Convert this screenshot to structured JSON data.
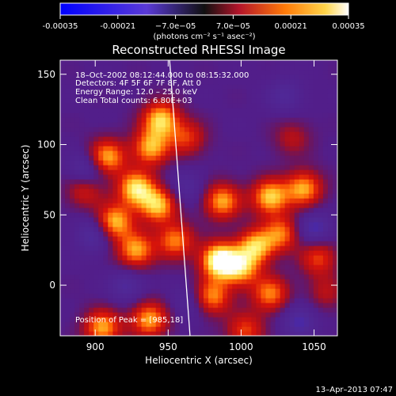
{
  "chart_data": {
    "type": "heatmap",
    "title": "Reconstructed RHESSI Image",
    "xlabel": "Heliocentric X (arcsec)",
    "ylabel": "Heliocentric Y (arcsec)",
    "xlim": [
      876,
      1066
    ],
    "ylim": [
      -36,
      160
    ],
    "x_ticks": [
      "900",
      "950",
      "1000",
      "1050"
    ],
    "y_ticks": [
      "0",
      "50",
      "100",
      "150"
    ],
    "colorbar": {
      "ticks": [
        "-0.00035",
        "-0.00021",
        "−7.0e−05",
        "7.0e−05",
        "0.00021",
        "0.00035"
      ],
      "range": [
        -0.00035,
        0.00035
      ],
      "label": "(photons cm⁻² s⁻¹ asec⁻²)"
    },
    "annotations": {
      "time": "18–Oct–2002 08:12:44.000 to 08:15:32.000",
      "detectors": "Detectors: 4F 5F 6F 7F 8F, Att 0",
      "energy": "Energy Range: 12.0 – 25.0 keV",
      "method": "Clean     Total counts: 6.80E+03",
      "peak": "Position of Peak = [985,18]"
    },
    "peak_position": [
      985,
      18
    ],
    "limb_line": {
      "x_top": 951,
      "x_bottom": 965
    },
    "bright_regions": [
      {
        "x": 908,
        "y": 91,
        "v": 0.9
      },
      {
        "x": 945,
        "y": 118,
        "v": 0.95
      },
      {
        "x": 938,
        "y": 98,
        "v": 0.85
      },
      {
        "x": 928,
        "y": 69,
        "v": 1.0
      },
      {
        "x": 943,
        "y": 57,
        "v": 0.9
      },
      {
        "x": 913,
        "y": 45,
        "v": 0.95
      },
      {
        "x": 928,
        "y": 25,
        "v": 0.85
      },
      {
        "x": 955,
        "y": 32,
        "v": 0.75
      },
      {
        "x": 987,
        "y": 60,
        "v": 0.85
      },
      {
        "x": 1020,
        "y": 63,
        "v": 0.95
      },
      {
        "x": 1043,
        "y": 69,
        "v": 0.85
      },
      {
        "x": 985,
        "y": 18,
        "v": 1.25
      },
      {
        "x": 1010,
        "y": 28,
        "v": 0.9
      },
      {
        "x": 1000,
        "y": 12,
        "v": 0.8
      },
      {
        "x": 980,
        "y": -8,
        "v": 0.8
      },
      {
        "x": 1020,
        "y": -6,
        "v": 0.75
      },
      {
        "x": 1028,
        "y": 37,
        "v": 0.7
      },
      {
        "x": 905,
        "y": -30,
        "v": 0.85
      },
      {
        "x": 937,
        "y": -24,
        "v": 0.85
      },
      {
        "x": 1003,
        "y": -32,
        "v": 0.6
      },
      {
        "x": 963,
        "y": 105,
        "v": 0.55
      },
      {
        "x": 1053,
        "y": 20,
        "v": 0.6
      },
      {
        "x": 893,
        "y": 68,
        "v": 0.5
      },
      {
        "x": 1035,
        "y": 105,
        "v": 0.35
      },
      {
        "x": 1058,
        "y": -5,
        "v": 0.35
      }
    ],
    "dark_regions": [
      {
        "x": 895,
        "y": 82,
        "v": -0.5
      },
      {
        "x": 900,
        "y": 37,
        "v": -0.45
      },
      {
        "x": 922,
        "y": 0,
        "v": -0.35
      },
      {
        "x": 963,
        "y": 70,
        "v": -0.3
      },
      {
        "x": 1050,
        "y": 40,
        "v": -0.45
      },
      {
        "x": 1030,
        "y": 135,
        "v": -0.3
      },
      {
        "x": 1040,
        "y": -25,
        "v": -0.4
      },
      {
        "x": 965,
        "y": -12,
        "v": -0.3
      }
    ]
  },
  "footer": {
    "date": "13–Apr–2013 07:47"
  }
}
